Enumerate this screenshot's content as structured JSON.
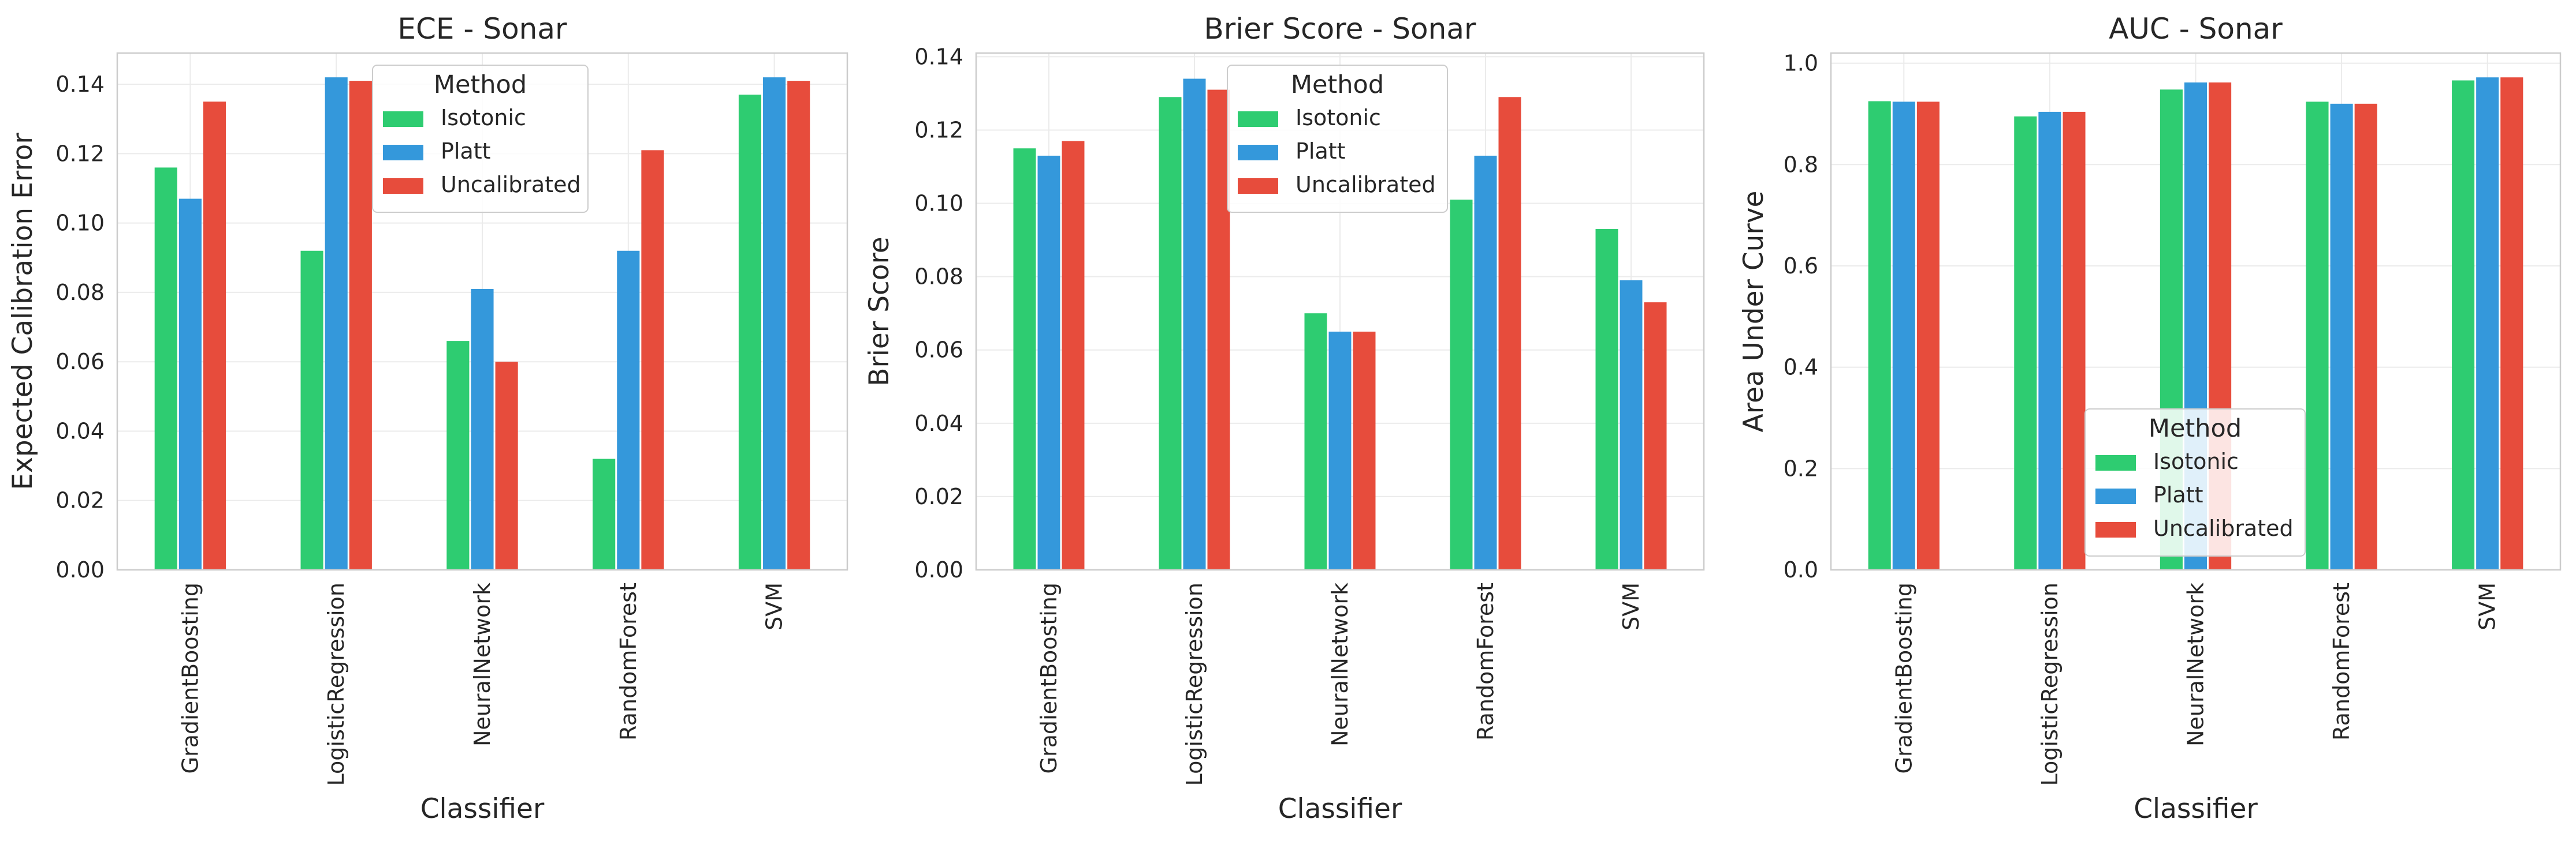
{
  "chart_data": [
    {
      "type": "bar",
      "title": "ECE - Sonar",
      "xlabel": "Classifier",
      "ylabel": "Expected Calibration Error",
      "ylim": [
        0,
        0.149
      ],
      "yticks": [
        0.0,
        0.02,
        0.04,
        0.06,
        0.08,
        0.1,
        0.12,
        0.14
      ],
      "ytick_labels": [
        "0.00",
        "0.02",
        "0.04",
        "0.06",
        "0.08",
        "0.10",
        "0.12",
        "0.14"
      ],
      "grid": true,
      "categories": [
        "GradientBoosting",
        "LogisticRegression",
        "NeuralNetwork",
        "RandomForest",
        "SVM"
      ],
      "series": [
        {
          "name": "Isotonic",
          "color": "#2ecc71",
          "values": [
            0.116,
            0.092,
            0.066,
            0.032,
            0.137
          ]
        },
        {
          "name": "Platt",
          "color": "#3498db",
          "values": [
            0.107,
            0.142,
            0.081,
            0.092,
            0.142
          ]
        },
        {
          "name": "Uncalibrated",
          "color": "#e74c3c",
          "values": [
            0.135,
            0.141,
            0.06,
            0.121,
            0.141
          ]
        }
      ],
      "legend": {
        "title": "Method",
        "placement": "top-center"
      }
    },
    {
      "type": "bar",
      "title": "Brier Score - Sonar",
      "xlabel": "Classifier",
      "ylabel": "Brier Score",
      "ylim": [
        0,
        0.141
      ],
      "yticks": [
        0.0,
        0.02,
        0.04,
        0.06,
        0.08,
        0.1,
        0.12,
        0.14
      ],
      "ytick_labels": [
        "0.00",
        "0.02",
        "0.04",
        "0.06",
        "0.08",
        "0.10",
        "0.12",
        "0.14"
      ],
      "grid": true,
      "categories": [
        "GradientBoosting",
        "LogisticRegression",
        "NeuralNetwork",
        "RandomForest",
        "SVM"
      ],
      "series": [
        {
          "name": "Isotonic",
          "color": "#2ecc71",
          "values": [
            0.115,
            0.129,
            0.07,
            0.101,
            0.093
          ]
        },
        {
          "name": "Platt",
          "color": "#3498db",
          "values": [
            0.113,
            0.134,
            0.065,
            0.113,
            0.079
          ]
        },
        {
          "name": "Uncalibrated",
          "color": "#e74c3c",
          "values": [
            0.117,
            0.131,
            0.065,
            0.129,
            0.073
          ]
        }
      ],
      "legend": {
        "title": "Method",
        "placement": "top-center"
      }
    },
    {
      "type": "bar",
      "title": "AUC - Sonar",
      "xlabel": "Classifier",
      "ylabel": "Area Under Curve",
      "ylim": [
        0,
        1.02
      ],
      "yticks": [
        0.0,
        0.2,
        0.4,
        0.6,
        0.8,
        1.0
      ],
      "ytick_labels": [
        "0.0",
        "0.2",
        "0.4",
        "0.6",
        "0.8",
        "1.0"
      ],
      "grid": true,
      "categories": [
        "GradientBoosting",
        "LogisticRegression",
        "NeuralNetwork",
        "RandomForest",
        "SVM"
      ],
      "series": [
        {
          "name": "Isotonic",
          "color": "#2ecc71",
          "values": [
            0.925,
            0.895,
            0.948,
            0.924,
            0.966
          ]
        },
        {
          "name": "Platt",
          "color": "#3498db",
          "values": [
            0.924,
            0.904,
            0.962,
            0.92,
            0.972
          ]
        },
        {
          "name": "Uncalibrated",
          "color": "#e74c3c",
          "values": [
            0.924,
            0.904,
            0.962,
            0.92,
            0.972
          ]
        }
      ],
      "legend": {
        "title": "Method",
        "placement": "lower-center"
      }
    }
  ]
}
